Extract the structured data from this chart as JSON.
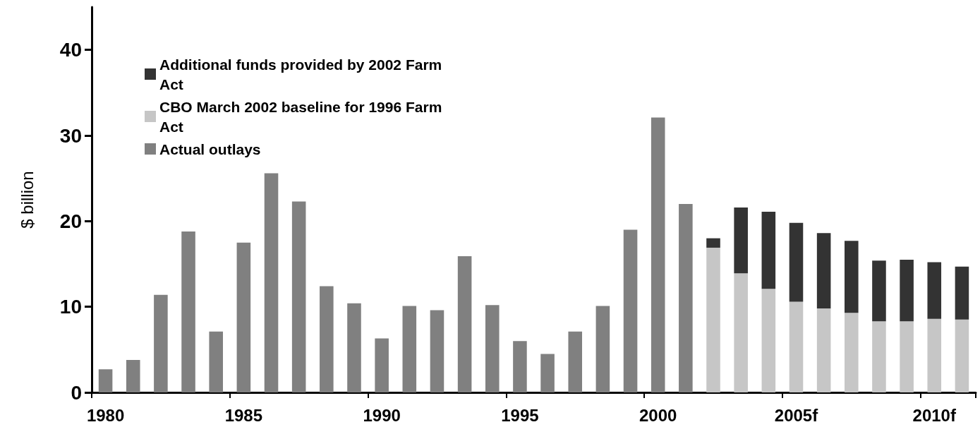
{
  "chart_data": {
    "type": "bar",
    "stacked": true,
    "ylabel": "$ billion",
    "categories": [
      "1980",
      null,
      null,
      null,
      null,
      "1985",
      null,
      null,
      null,
      null,
      "1990",
      null,
      null,
      null,
      null,
      "1995",
      null,
      null,
      null,
      null,
      "2000",
      null,
      null,
      null,
      null,
      "2005f",
      null,
      null,
      null,
      null,
      "2010f",
      null
    ],
    "series": [
      {
        "name": "Actual outlays",
        "color": "#808080",
        "values": [
          2.7,
          3.8,
          11.4,
          18.8,
          7.1,
          17.5,
          25.6,
          22.3,
          12.4,
          10.4,
          6.3,
          10.1,
          9.6,
          15.9,
          10.2,
          6.0,
          4.5,
          7.1,
          10.1,
          19.0,
          32.1,
          22.0,
          null,
          null,
          null,
          null,
          null,
          null,
          null,
          null,
          null,
          null
        ]
      },
      {
        "name": "CBO March 2002 baseline for 1996 Farm Act",
        "color": "#c6c6c6",
        "values": [
          null,
          null,
          null,
          null,
          null,
          null,
          null,
          null,
          null,
          null,
          null,
          null,
          null,
          null,
          null,
          null,
          null,
          null,
          null,
          null,
          null,
          null,
          16.9,
          13.9,
          12.1,
          10.6,
          9.8,
          9.3,
          8.3,
          8.3,
          8.6,
          8.5
        ]
      },
      {
        "name": "Additional funds provided by 2002 Farm Act",
        "color": "#333333",
        "values": [
          null,
          null,
          null,
          null,
          null,
          null,
          null,
          null,
          null,
          null,
          null,
          null,
          null,
          null,
          null,
          null,
          null,
          null,
          null,
          null,
          null,
          null,
          1.1,
          7.7,
          9.0,
          9.2,
          8.8,
          8.4,
          7.1,
          7.2,
          6.6,
          6.2
        ]
      }
    ],
    "ylim": [
      0,
      45
    ],
    "yticks": [
      0,
      10,
      20,
      30,
      40
    ],
    "grid": false,
    "legend": "top left"
  }
}
